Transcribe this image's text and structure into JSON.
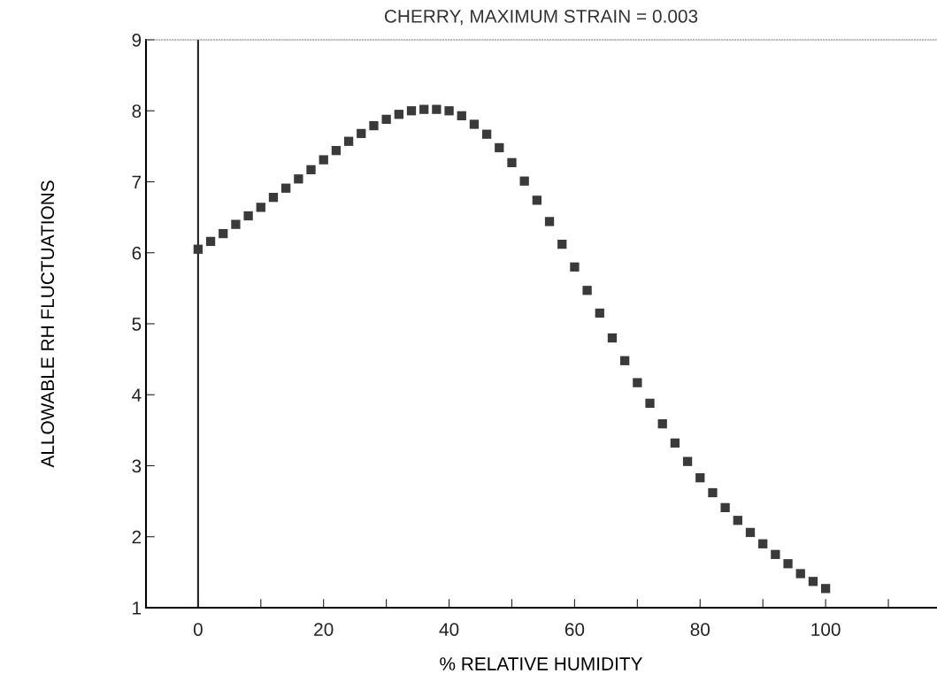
{
  "chart_data": {
    "type": "scatter",
    "title": "CHERRY, MAXIMUM STRAIN = 0.003",
    "xlabel": "% RELATIVE HUMIDITY",
    "ylabel": "ALLOWABLE RH FLUCTUATIONS",
    "x": [
      0,
      2,
      4,
      6,
      8,
      10,
      12,
      14,
      16,
      18,
      20,
      22,
      24,
      26,
      28,
      30,
      32,
      34,
      36,
      38,
      40,
      42,
      44,
      46,
      48,
      50,
      52,
      54,
      56,
      58,
      60,
      62,
      64,
      66,
      68,
      70,
      72,
      74,
      76,
      78,
      80,
      82,
      84,
      86,
      88,
      90,
      92,
      94,
      96,
      98,
      100
    ],
    "series": [
      {
        "color": "#3a3a3a",
        "values": [
          6.05,
          6.16,
          6.27,
          6.4,
          6.52,
          6.64,
          6.78,
          6.91,
          7.04,
          7.17,
          7.31,
          7.44,
          7.57,
          7.68,
          7.79,
          7.88,
          7.95,
          8.0,
          8.02,
          8.02,
          8.0,
          7.93,
          7.81,
          7.67,
          7.48,
          7.27,
          7.01,
          6.74,
          6.44,
          6.12,
          5.8,
          5.47,
          5.15,
          4.8,
          4.48,
          4.17,
          3.88,
          3.59,
          3.32,
          3.06,
          2.83,
          2.62,
          2.41,
          2.23,
          2.06,
          1.9,
          1.75,
          1.62,
          1.48,
          1.37,
          1.27
        ]
      }
    ],
    "marker": "square",
    "grid": false,
    "legend": false,
    "xlim": [
      -8.3,
      117.6
    ],
    "ylim": [
      1,
      9
    ],
    "xticks": [
      0,
      {
        "value": 10,
        "label": null
      },
      20,
      {
        "value": 30,
        "label": null
      },
      40,
      {
        "value": 50,
        "label": null
      },
      60,
      {
        "value": 70,
        "label": null
      },
      80,
      {
        "value": 90,
        "label": null
      },
      100,
      {
        "value": 110,
        "label": null
      }
    ],
    "yticks": [
      1,
      2,
      3,
      4,
      5,
      6,
      7,
      8,
      9
    ],
    "ref_lines": [
      {
        "axis": "x",
        "value": 0,
        "label": null,
        "color": "#222222",
        "line_style": "solid"
      }
    ]
  }
}
